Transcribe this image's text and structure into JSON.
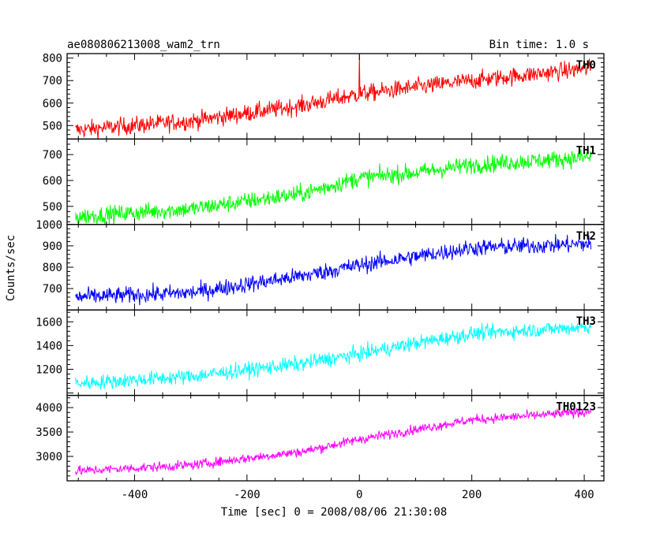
{
  "chart_data": {
    "type": "line",
    "title": "ae080806213008_wam2_trn",
    "bin_time": "Bin time: 1.0 s",
    "xlabel": "Time [sec] 0 = 2008/08/06 21:30:08",
    "ylabel": "Counts/sec",
    "xlim": [
      -520,
      435
    ],
    "xticks": [
      -400,
      -200,
      0,
      200,
      400
    ],
    "x_start": -505,
    "x_end": 412,
    "panels": [
      {
        "name": "TH0",
        "color": "#ff0000",
        "ylim": [
          440,
          820
        ],
        "yticks": [
          500,
          600,
          700,
          800
        ],
        "trend": [
          [
            -505,
            480
          ],
          [
            -300,
            520
          ],
          [
            -100,
            590
          ],
          [
            0,
            640
          ],
          [
            100,
            670
          ],
          [
            200,
            700
          ],
          [
            412,
            755
          ]
        ],
        "noise": 28,
        "spike": {
          "x": 0,
          "y": 815
        }
      },
      {
        "name": "TH1",
        "color": "#00ff00",
        "ylim": [
          430,
          760
        ],
        "yticks": [
          500,
          600,
          700
        ],
        "trend": [
          [
            -505,
            460
          ],
          [
            -300,
            490
          ],
          [
            -100,
            550
          ],
          [
            0,
            610
          ],
          [
            100,
            630
          ],
          [
            200,
            660
          ],
          [
            412,
            690
          ]
        ],
        "noise": 24
      },
      {
        "name": "TH2",
        "color": "#0000ff",
        "ylim": [
          600,
          1000
        ],
        "yticks": [
          700,
          800,
          900,
          1000
        ],
        "trend": [
          [
            -505,
            660
          ],
          [
            -300,
            680
          ],
          [
            -100,
            760
          ],
          [
            0,
            810
          ],
          [
            100,
            850
          ],
          [
            200,
            890
          ],
          [
            412,
            910
          ]
        ],
        "noise": 28
      },
      {
        "name": "TH3",
        "color": "#00ffff",
        "ylim": [
          980,
          1700
        ],
        "yticks": [
          1200,
          1400,
          1600
        ],
        "trend": [
          [
            -505,
            1080
          ],
          [
            -300,
            1140
          ],
          [
            -100,
            1250
          ],
          [
            0,
            1330
          ],
          [
            100,
            1420
          ],
          [
            200,
            1500
          ],
          [
            412,
            1560
          ]
        ],
        "noise": 45
      },
      {
        "name": "TH0123",
        "color": "#ff00ff",
        "ylim": [
          2500,
          4250
        ],
        "yticks": [
          3000,
          3500,
          4000
        ],
        "trend": [
          [
            -505,
            2700
          ],
          [
            -300,
            2820
          ],
          [
            -100,
            3100
          ],
          [
            0,
            3350
          ],
          [
            100,
            3550
          ],
          [
            200,
            3750
          ],
          [
            412,
            3920
          ]
        ],
        "noise": 70
      }
    ]
  }
}
